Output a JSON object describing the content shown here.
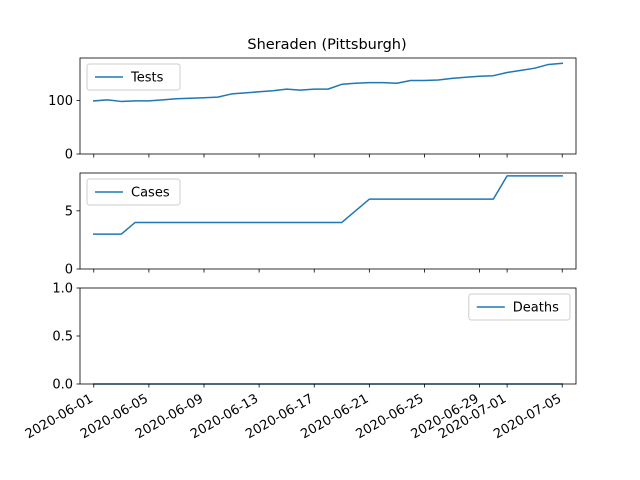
{
  "chart_data": {
    "title": "Sheraden (Pittsburgh)",
    "x_tick_labels": [
      "2020-06-01",
      "2020-06-05",
      "2020-06-09",
      "2020-06-13",
      "2020-06-17",
      "2020-06-21",
      "2020-06-25",
      "2020-06-29",
      "2020-07-01",
      "2020-07-05"
    ],
    "x_tick_dates": [
      "2020-06-01",
      "2020-06-05",
      "2020-06-09",
      "2020-06-13",
      "2020-06-17",
      "2020-06-21",
      "2020-06-25",
      "2020-06-29",
      "2020-07-01",
      "2020-07-05"
    ],
    "x_range": [
      "2020-05-31",
      "2020-07-06"
    ],
    "line_color": "#1f77b4",
    "panels": [
      {
        "type": "line",
        "series": [
          {
            "name": "Tests",
            "color": "#1f77b4",
            "x": [
              "2020-06-01",
              "2020-06-02",
              "2020-06-03",
              "2020-06-04",
              "2020-06-05",
              "2020-06-06",
              "2020-06-07",
              "2020-06-08",
              "2020-06-09",
              "2020-06-10",
              "2020-06-11",
              "2020-06-12",
              "2020-06-13",
              "2020-06-14",
              "2020-06-15",
              "2020-06-16",
              "2020-06-17",
              "2020-06-18",
              "2020-06-19",
              "2020-06-20",
              "2020-06-21",
              "2020-06-22",
              "2020-06-23",
              "2020-06-24",
              "2020-06-25",
              "2020-06-26",
              "2020-06-27",
              "2020-06-28",
              "2020-06-29",
              "2020-06-30",
              "2020-07-01",
              "2020-07-02",
              "2020-07-03",
              "2020-07-04",
              "2020-07-05"
            ],
            "y": [
              99,
              101,
              98,
              99,
              99,
              101,
              103,
              104,
              105,
              106,
              112,
              114,
              116,
              118,
              121,
              119,
              121,
              121,
              130,
              132,
              133,
              133,
              132,
              137,
              137,
              138,
              141,
              143,
              145,
              146,
              152,
              156,
              160,
              167,
              169
            ]
          }
        ],
        "yticks": [
          0,
          100
        ],
        "ylim": [
          0,
          179
        ],
        "legend": "upper-left"
      },
      {
        "type": "line",
        "series": [
          {
            "name": "Cases",
            "color": "#1f77b4",
            "x": [
              "2020-06-01",
              "2020-06-02",
              "2020-06-03",
              "2020-06-04",
              "2020-06-05",
              "2020-06-06",
              "2020-06-07",
              "2020-06-08",
              "2020-06-09",
              "2020-06-10",
              "2020-06-11",
              "2020-06-12",
              "2020-06-13",
              "2020-06-14",
              "2020-06-15",
              "2020-06-16",
              "2020-06-17",
              "2020-06-18",
              "2020-06-19",
              "2020-06-20",
              "2020-06-21",
              "2020-06-22",
              "2020-06-23",
              "2020-06-24",
              "2020-06-25",
              "2020-06-26",
              "2020-06-27",
              "2020-06-28",
              "2020-06-29",
              "2020-06-30",
              "2020-07-01",
              "2020-07-02",
              "2020-07-03",
              "2020-07-04",
              "2020-07-05"
            ],
            "y": [
              3,
              3,
              3,
              4,
              4,
              4,
              4,
              4,
              4,
              4,
              4,
              4,
              4,
              4,
              4,
              4,
              4,
              4,
              4,
              5,
              6,
              6,
              6,
              6,
              6,
              6,
              6,
              6,
              6,
              6,
              8,
              8,
              8,
              8,
              8
            ]
          }
        ],
        "yticks": [
          0,
          5
        ],
        "ylim": [
          0,
          8.25
        ],
        "legend": "upper-left"
      },
      {
        "type": "line",
        "series": [
          {
            "name": "Deaths",
            "color": "#1f77b4",
            "x": [
              "2020-06-01",
              "2020-07-05"
            ],
            "y": [
              0,
              0
            ]
          }
        ],
        "yticks": [
          0.0,
          0.5,
          1.0
        ],
        "ytick_labels": [
          "0.0",
          "0.5",
          "1.0"
        ],
        "ylim": [
          0,
          1
        ],
        "legend": "upper-right"
      }
    ]
  }
}
